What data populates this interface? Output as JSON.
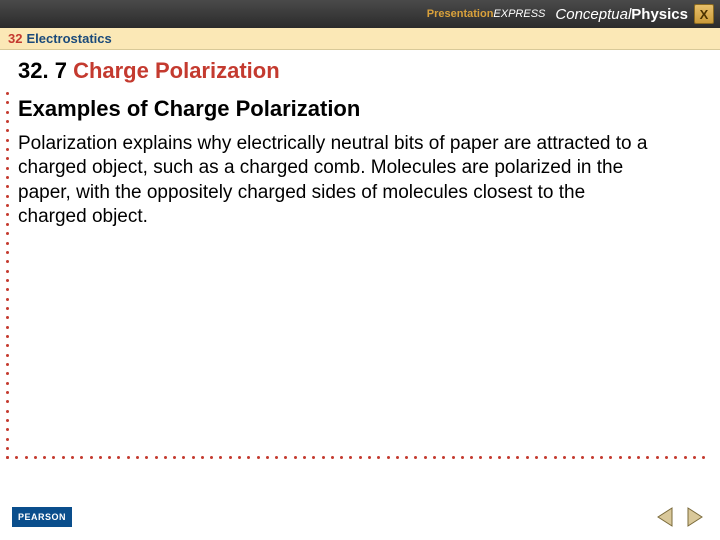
{
  "topbar": {
    "brand_prefix": "Presentation",
    "brand_suffix": "EXPRESS",
    "product_prefix": "Conceptual",
    "product_suffix": "Physics",
    "close_label": "X"
  },
  "chapter": {
    "number": "32",
    "title": "Electrostatics"
  },
  "section": {
    "number": "32. 7",
    "title": "Charge Polarization"
  },
  "subtitle": "Examples of Charge Polarization",
  "body": "Polarization explains why electrically neutral bits of paper are attracted to a charged object, such as a charged comb. Molecules are polarized in the paper, with the oppositely charged sides of molecules closest to the charged object.",
  "footer": {
    "publisher": "PEARSON"
  },
  "colors": {
    "accent_red": "#c43a2f",
    "accent_blue": "#1b4a7a",
    "header_bg": "#fbe8b6",
    "topbar_dark": "#2b2b2b",
    "gold": "#d9a13b",
    "pearson_blue": "#0a4e8c"
  },
  "icons": {
    "close": "close-icon",
    "prev": "chevron-left-icon",
    "next": "chevron-right-icon"
  }
}
